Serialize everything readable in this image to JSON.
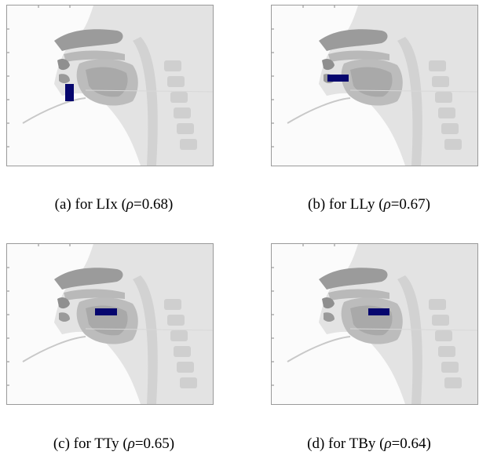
{
  "figures": [
    {
      "caption_prefix": "(a) for LIx (",
      "rho_symbol": "ρ",
      "rho_value": "=0.68)",
      "highlight_color": "#06066e"
    },
    {
      "caption_prefix": "(b) for LLy (",
      "rho_symbol": "ρ",
      "rho_value": "=0.67)",
      "highlight_color": "#06066e"
    },
    {
      "caption_prefix": "(c) for TTy (",
      "rho_symbol": "ρ",
      "rho_value": "=0.65)",
      "highlight_color": "#06066e"
    },
    {
      "caption_prefix": "(d) for TBy (",
      "rho_symbol": "ρ",
      "rho_value": "=0.64)",
      "highlight_color": "#06066e"
    }
  ]
}
